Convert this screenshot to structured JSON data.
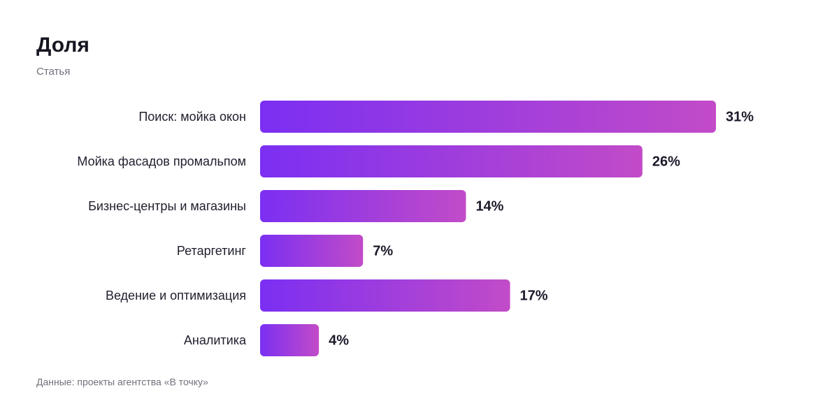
{
  "chart_data": {
    "type": "bar",
    "orientation": "horizontal",
    "title": "Доля",
    "subtitle": "Статья",
    "categories": [
      "Поиск: мойка окон",
      "Мойка фасадов промальпом",
      "Бизнес-центры и магазины",
      "Ретаргетинг",
      "Ведение и оптимизация",
      "Аналитика"
    ],
    "values": [
      31,
      26,
      14,
      7,
      17,
      4
    ],
    "value_labels": [
      "31%",
      "26%",
      "14%",
      "7%",
      "17%",
      "4%"
    ],
    "gradient": [
      "#7b2ff2",
      "#c24bc8"
    ],
    "source": "Данные: проекты агентства «В точку»"
  }
}
